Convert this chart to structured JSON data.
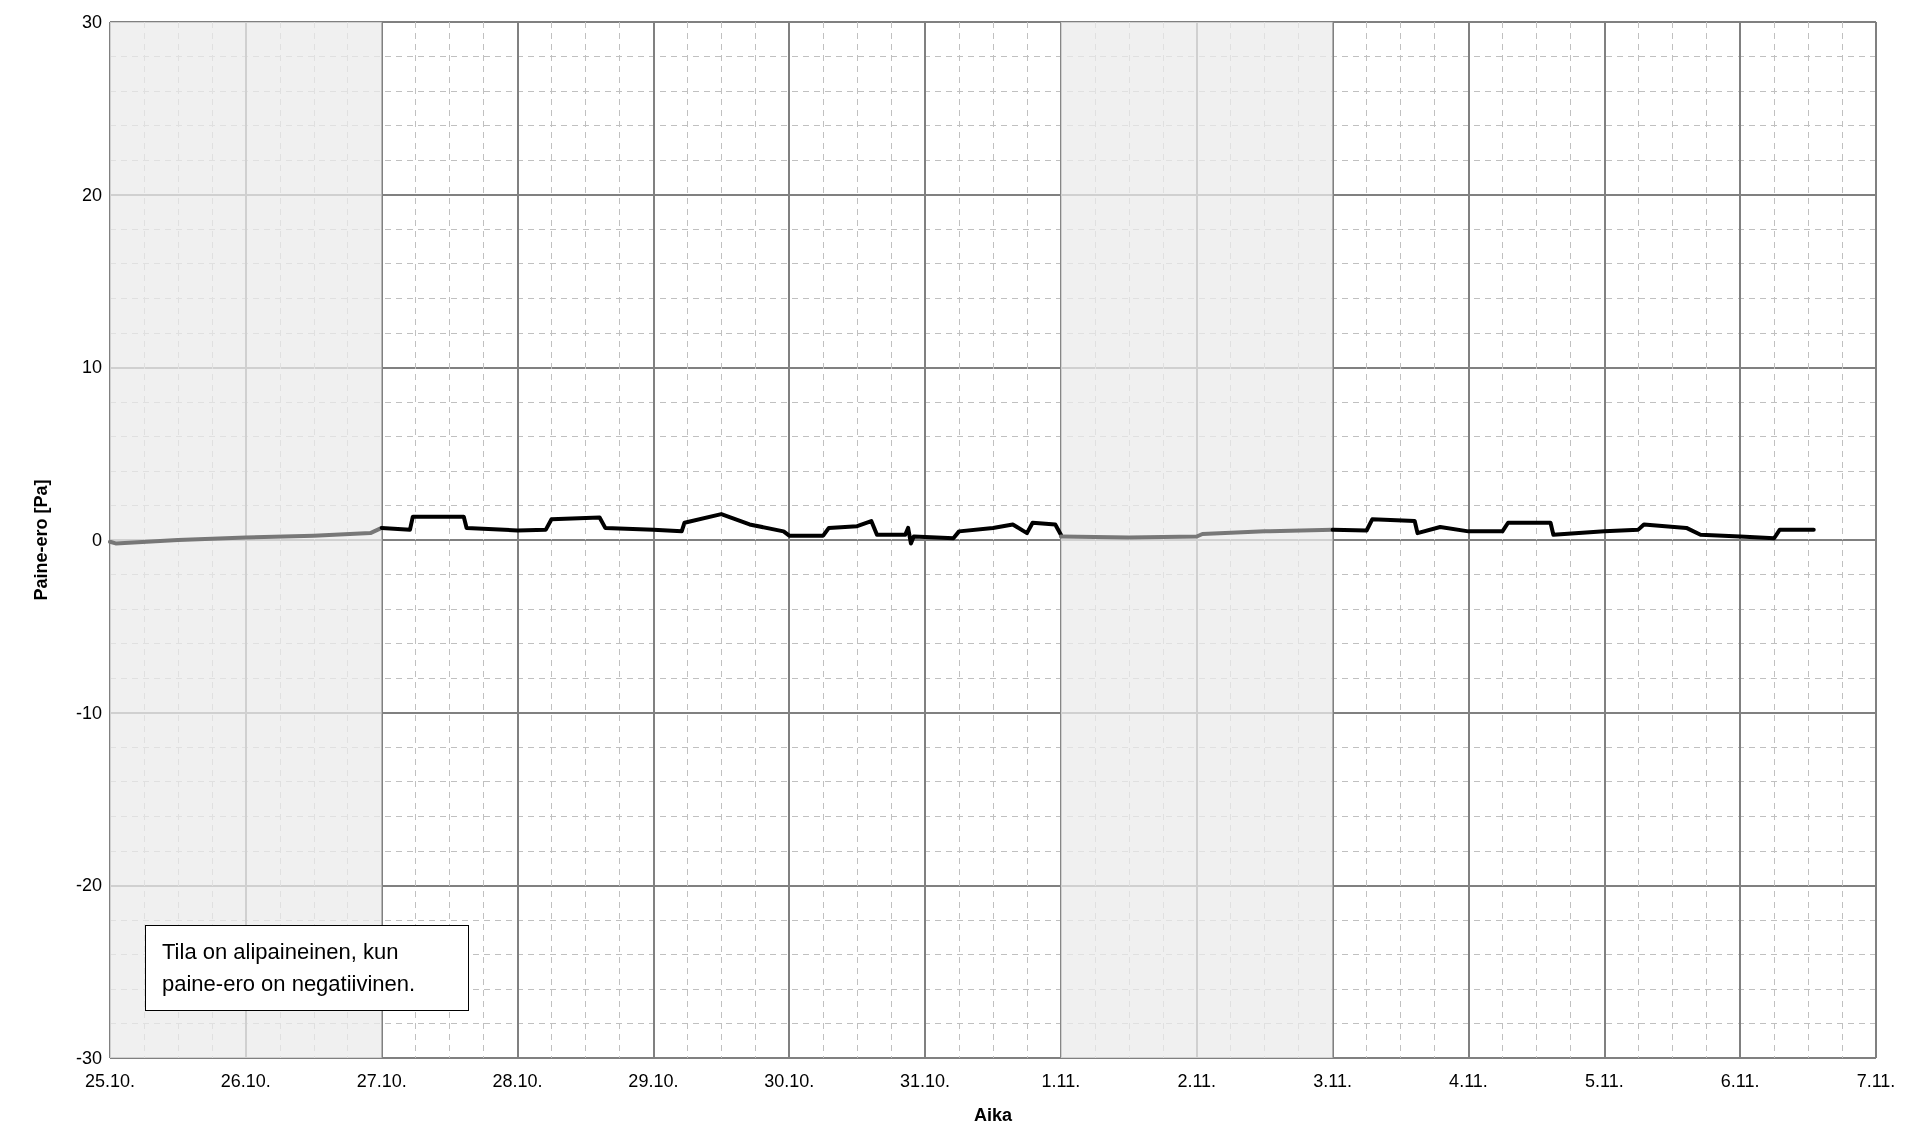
{
  "chart_data": {
    "type": "line",
    "xlabel": "Aika",
    "ylabel": "Paine-ero [Pa]",
    "xlim": [
      "--10-25",
      "--11-07"
    ],
    "xticks": [
      {
        "value": "--10-25",
        "label": "25.10."
      },
      {
        "value": "--10-26",
        "label": "26.10."
      },
      {
        "value": "--10-27",
        "label": "27.10."
      },
      {
        "value": "--10-28",
        "label": "28.10."
      },
      {
        "value": "--10-29",
        "label": "29.10."
      },
      {
        "value": "--10-30",
        "label": "30.10."
      },
      {
        "value": "--10-31",
        "label": "31.10."
      },
      {
        "value": "--11-01",
        "label": "1.11."
      },
      {
        "value": "--11-02",
        "label": "2.11."
      },
      {
        "value": "--11-03",
        "label": "3.11."
      },
      {
        "value": "--11-04",
        "label": "4.11."
      },
      {
        "value": "--11-05",
        "label": "5.11."
      },
      {
        "value": "--11-06",
        "label": "6.11."
      },
      {
        "value": "--11-07",
        "label": "7.11."
      }
    ],
    "ylim": [
      -30,
      30
    ],
    "yticks": [
      -30,
      -20,
      -10,
      0,
      10,
      20,
      30
    ],
    "grid": true,
    "marker": "none",
    "line_style": "solid",
    "bands": [
      {
        "axis": "x",
        "from": "--10-25",
        "to": "--10-27",
        "color": "#ebebeb"
      },
      {
        "axis": "x",
        "from": "--11-01",
        "to": "--11-03",
        "color": "#ebebeb"
      }
    ],
    "annotations": [
      "Tila on alipaineinen, kun paine-ero on negatiivinen."
    ],
    "series": [
      {
        "color": "#777777",
        "x": [
          "--10-25T00:00",
          "--10-25T01:00",
          "--10-25T12:00",
          "--10-26T00:00",
          "--10-26T12:00",
          "--10-26T22:00",
          "--10-27T00:00"
        ],
        "values": [
          -0.1,
          -0.2,
          0,
          0.15,
          0.25,
          0.4,
          0.7
        ]
      },
      {
        "color": "#000000",
        "x": [
          "--10-27T00:00",
          "--10-27T05:00",
          "--10-27T05:30",
          "--10-27T14:30",
          "--10-27T15:00",
          "--10-28T00:00",
          "--10-28T05:00",
          "--10-28T06:00",
          "--10-28T14:30",
          "--10-28T15:30",
          "--10-29T00:00",
          "--10-29T05:00",
          "--10-29T05:30",
          "--10-29T12:00",
          "--10-29T17:00",
          "--10-29T23:00",
          "--10-30T00:00",
          "--10-30T06:00",
          "--10-30T07:00",
          "--10-30T12:00",
          "--10-30T14:30",
          "--10-30T15:30",
          "--10-30T20:30",
          "--10-30T21:00",
          "--10-30T21:30",
          "--10-30T22:00",
          "--10-31T05:00",
          "--10-31T06:00",
          "--10-31T12:00",
          "--10-31T15:30",
          "--10-31T18:00",
          "--10-31T19:00",
          "--10-31T23:00",
          "--11-01T00:00"
        ],
        "values": [
          0.7,
          0.6,
          1.35,
          1.35,
          0.7,
          0.55,
          0.6,
          1.2,
          1.3,
          0.7,
          0.6,
          0.5,
          1,
          1.5,
          0.9,
          0.5,
          0.25,
          0.25,
          0.7,
          0.8,
          1.1,
          0.3,
          0.3,
          0.7,
          -0.2,
          0.2,
          0.1,
          0.5,
          0.7,
          0.9,
          0.4,
          1,
          0.9,
          0.3
        ]
      },
      {
        "color": "#777777",
        "x": [
          "--11-01T00:00",
          "--11-01T12:00",
          "--11-02T00:00",
          "--11-02T01:00",
          "--11-02T12:00",
          "--11-03T00:00"
        ],
        "values": [
          0.2,
          0.15,
          0.2,
          0.35,
          0.5,
          0.6
        ]
      },
      {
        "color": "#000000",
        "x": [
          "--11-03T00:00",
          "--11-03T06:00",
          "--11-03T07:00",
          "--11-03T14:30",
          "--11-03T15:00",
          "--11-03T19:00",
          "--11-04T00:00",
          "--11-04T06:00",
          "--11-04T07:00",
          "--11-04T14:30",
          "--11-04T15:00",
          "--11-05T00:00",
          "--11-05T06:00",
          "--11-05T07:00",
          "--11-05T14:30",
          "--11-05T17:00",
          "--11-06T00:00",
          "--11-06T06:00",
          "--11-06T07:00",
          "--11-06T13:00"
        ],
        "values": [
          0.6,
          0.55,
          1.2,
          1.1,
          0.4,
          0.75,
          0.5,
          0.5,
          1,
          1,
          0.3,
          0.5,
          0.6,
          0.9,
          0.7,
          0.3,
          0.2,
          0.1,
          0.6,
          0.6
        ]
      }
    ]
  }
}
